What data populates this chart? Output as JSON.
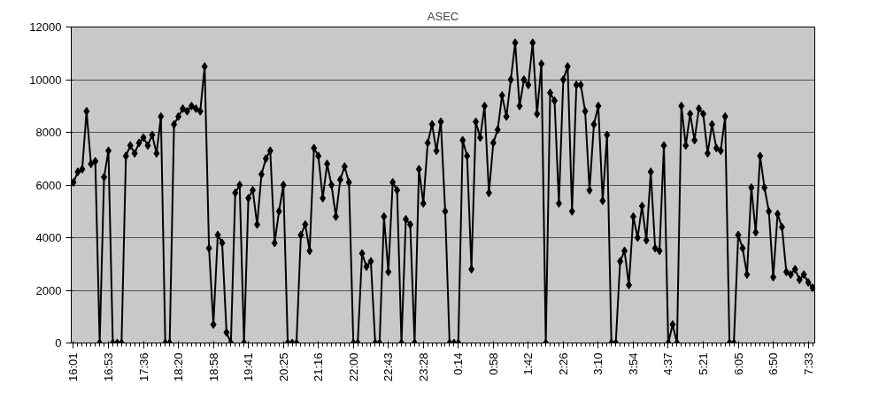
{
  "chart_data": {
    "type": "line",
    "title": "ASEC",
    "categories": [
      "16:01",
      null,
      null,
      null,
      null,
      null,
      null,
      null,
      "16:53",
      null,
      null,
      null,
      null,
      null,
      null,
      null,
      "17:36",
      null,
      null,
      null,
      null,
      null,
      null,
      null,
      "18:20",
      null,
      null,
      null,
      null,
      null,
      null,
      null,
      "18:58",
      null,
      null,
      null,
      null,
      null,
      null,
      null,
      "19:41",
      null,
      null,
      null,
      null,
      null,
      null,
      null,
      "20:25",
      null,
      null,
      null,
      null,
      null,
      null,
      null,
      "21:16",
      null,
      null,
      null,
      null,
      null,
      null,
      null,
      "22:00",
      null,
      null,
      null,
      null,
      null,
      null,
      null,
      "22:43",
      null,
      null,
      null,
      null,
      null,
      null,
      null,
      "23:28",
      null,
      null,
      null,
      null,
      null,
      null,
      null,
      "0:14",
      null,
      null,
      null,
      null,
      null,
      null,
      null,
      "0:58",
      null,
      null,
      null,
      null,
      null,
      null,
      null,
      "1:42",
      null,
      null,
      null,
      null,
      null,
      null,
      null,
      "2:26",
      null,
      null,
      null,
      null,
      null,
      null,
      null,
      "3:10",
      null,
      null,
      null,
      null,
      null,
      null,
      null,
      "3:54",
      null,
      null,
      null,
      null,
      null,
      null,
      null,
      "4:37",
      null,
      null,
      null,
      null,
      null,
      null,
      null,
      "5:21",
      null,
      null,
      null,
      null,
      null,
      null,
      null,
      "6:05",
      null,
      null,
      null,
      null,
      null,
      null,
      null,
      "6:50",
      null,
      null,
      null,
      null,
      null,
      null,
      null,
      "7:33",
      null
    ],
    "series": [
      {
        "color": "#000000",
        "values": [
          6100,
          6500,
          6600,
          8800,
          6800,
          6900,
          0,
          6300,
          7300,
          0,
          0,
          0,
          7100,
          7500,
          7200,
          7600,
          7800,
          7500,
          7900,
          7200,
          8600,
          0,
          0,
          8300,
          8600,
          8900,
          8800,
          9000,
          8900,
          8800,
          10500,
          3600,
          700,
          4100,
          3800,
          400,
          0,
          5700,
          6000,
          0,
          5500,
          5800,
          4500,
          6400,
          7000,
          7300,
          3800,
          5000,
          6000,
          0,
          0,
          0,
          4100,
          4500,
          3500,
          7400,
          7100,
          5500,
          6800,
          6000,
          4800,
          6200,
          6700,
          6100,
          0,
          0,
          3400,
          2900,
          3100,
          0,
          0,
          4800,
          2700,
          6100,
          5800,
          0,
          4700,
          4500,
          0,
          6600,
          5300,
          7600,
          8300,
          7300,
          8400,
          5000,
          0,
          0,
          0,
          7700,
          7100,
          2800,
          8400,
          7800,
          9000,
          5700,
          7600,
          8100,
          9400,
          8600,
          10000,
          11400,
          9000,
          10000,
          9800,
          11400,
          8700,
          10600,
          0,
          9500,
          9200,
          5300,
          10000,
          10500,
          5000,
          9800,
          9800,
          8800,
          5800,
          8300,
          9000,
          5400,
          7900,
          0,
          0,
          3100,
          3500,
          2200,
          4800,
          4000,
          5200,
          3900,
          6500,
          3600,
          3500,
          7500,
          0,
          700,
          0,
          9000,
          7500,
          8700,
          7700,
          8900,
          8700,
          7200,
          8300,
          7400,
          7300,
          8600,
          0,
          0,
          4100,
          3600,
          2600,
          5900,
          4200,
          7100,
          5900,
          5000,
          2500,
          4900,
          4400,
          2700,
          2600,
          2800,
          2400,
          2600,
          2300,
          2100
        ]
      }
    ],
    "ylim": [
      0,
      12000
    ],
    "yticks": [
      0,
      2000,
      4000,
      6000,
      8000,
      10000,
      12000
    ],
    "grid": "y",
    "marker": "diamond",
    "line_style": "solid"
  }
}
